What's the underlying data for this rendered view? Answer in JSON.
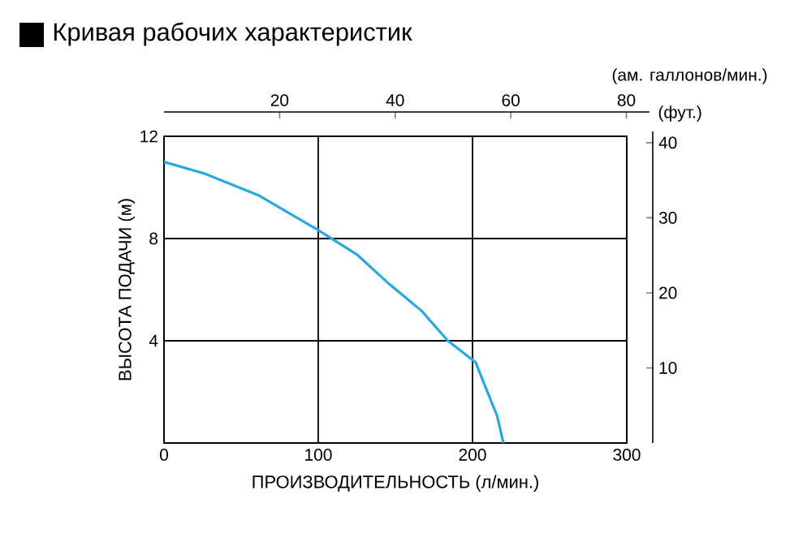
{
  "chart_data": {
    "type": "line",
    "title": "Кривая рабочих характеристик",
    "xlabel": "ПРОИЗВОДИТЕЛЬНОСТЬ (л/мин.)",
    "ylabel": "ВЫСОТА ПОДАЧИ (м)",
    "x2label": "(ам. галлонов/мин.)",
    "y2label": "(фут.)",
    "xlim": [
      0,
      300
    ],
    "xticks": [
      0,
      100,
      200,
      300
    ],
    "ylim": [
      0,
      12
    ],
    "yticks": [
      4,
      8,
      12
    ],
    "x2lim": [
      0,
      84
    ],
    "x2ticks": [
      20,
      40,
      60,
      80
    ],
    "y2lim": [
      0,
      41.5
    ],
    "y2ticks": [
      10,
      20,
      30,
      40
    ],
    "grid": true,
    "series": [
      {
        "color": "#29a8e0",
        "x": [
          0,
          26,
          61,
          100,
          125,
          146,
          167,
          184,
          202,
          209,
          216,
          220
        ],
        "values": [
          11.0,
          10.55,
          9.7,
          8.33,
          7.38,
          6.22,
          5.17,
          4.0,
          3.16,
          2.1,
          1.05,
          0
        ]
      }
    ]
  }
}
